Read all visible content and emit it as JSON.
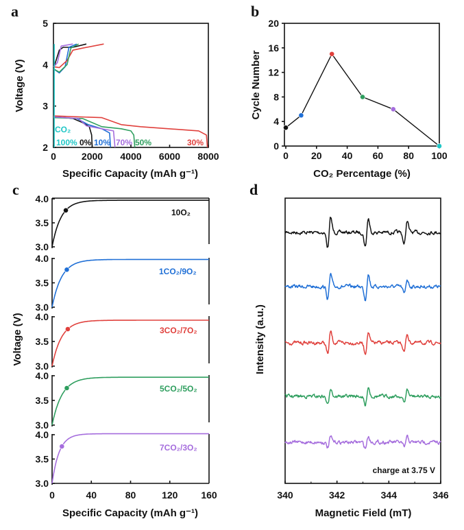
{
  "colors": {
    "p0": "#111111",
    "p10": "#1f6fd6",
    "p30": "#e0403c",
    "p50": "#2e9e5e",
    "p70": "#a56ddd",
    "p100": "#1fc6c6"
  },
  "chart_data": [
    {
      "panel": "a",
      "type": "line",
      "xlabel": "Specific Capacity (mAh g⁻¹)",
      "ylabel": "Voltage (V)",
      "xlim": [
        0,
        8000
      ],
      "ylim": [
        2,
        5
      ],
      "xticks": [
        "0",
        "2000",
        "4000",
        "6000",
        "8000"
      ],
      "yticks": [
        "2",
        "3",
        "4",
        "5"
      ],
      "annotation": "CO₂",
      "series": [
        {
          "name": "0%",
          "color": "p0",
          "discharge": [
            [
              0,
              2.75
            ],
            [
              1000,
              2.7
            ],
            [
              1500,
              2.6
            ],
            [
              1850,
              2.5
            ],
            [
              1970,
              2.3
            ],
            [
              2000,
              2.0
            ]
          ],
          "charge": [
            [
              0,
              3.95
            ],
            [
              100,
              4.05
            ],
            [
              300,
              4.35
            ],
            [
              500,
              4.42
            ],
            [
              1000,
              4.42
            ],
            [
              1700,
              4.5
            ]
          ]
        },
        {
          "name": "10%",
          "color": "p10",
          "discharge": [
            [
              0,
              2.73
            ],
            [
              1200,
              2.7
            ],
            [
              1800,
              2.55
            ],
            [
              2500,
              2.45
            ],
            [
              2900,
              2.35
            ],
            [
              2950,
              2.0
            ]
          ],
          "charge": [
            [
              0,
              3.9
            ],
            [
              300,
              3.8
            ],
            [
              600,
              3.95
            ],
            [
              800,
              4.42
            ],
            [
              1200,
              4.5
            ]
          ]
        },
        {
          "name": "30%",
          "color": "p30",
          "discharge": [
            [
              0,
              2.76
            ],
            [
              2500,
              2.72
            ],
            [
              3500,
              2.55
            ],
            [
              4500,
              2.5
            ],
            [
              7500,
              2.4
            ],
            [
              7900,
              2.3
            ],
            [
              7950,
              2.0
            ]
          ],
          "charge": [
            [
              0,
              3.95
            ],
            [
              300,
              3.93
            ],
            [
              700,
              4.1
            ],
            [
              1000,
              4.35
            ],
            [
              1500,
              4.4
            ],
            [
              2600,
              4.5
            ]
          ]
        },
        {
          "name": "50%",
          "color": "p50",
          "discharge": [
            [
              0,
              2.72
            ],
            [
              1500,
              2.7
            ],
            [
              2500,
              2.5
            ],
            [
              3500,
              2.45
            ],
            [
              4000,
              2.4
            ],
            [
              4150,
              2.3
            ],
            [
              4200,
              2.0
            ]
          ],
          "charge": [
            [
              0,
              3.9
            ],
            [
              300,
              3.82
            ],
            [
              700,
              4.0
            ],
            [
              900,
              4.4
            ],
            [
              1300,
              4.5
            ]
          ]
        },
        {
          "name": "70%",
          "color": "p70",
          "discharge": [
            [
              0,
              2.74
            ],
            [
              1300,
              2.7
            ],
            [
              1700,
              2.52
            ],
            [
              2500,
              2.45
            ],
            [
              3100,
              2.4
            ],
            [
              3180,
              2.0
            ]
          ],
          "charge": [
            [
              0,
              3.95
            ],
            [
              200,
              4.05
            ],
            [
              400,
              4.45
            ],
            [
              1000,
              4.5
            ]
          ]
        },
        {
          "name": "100%",
          "color": "p100",
          "discharge": [
            [
              40,
              4.5
            ],
            [
              40,
              2.0
            ]
          ],
          "charge": []
        }
      ]
    },
    {
      "panel": "b",
      "type": "line",
      "xlabel": "CO₂ Percentage (%)",
      "ylabel": "Cycle Number",
      "xlim": [
        0,
        100
      ],
      "ylim": [
        0,
        20
      ],
      "xticks": [
        "0",
        "20",
        "40",
        "60",
        "80",
        "100"
      ],
      "yticks": [
        "0",
        "4",
        "8",
        "12",
        "16",
        "20"
      ],
      "x": [
        0,
        10,
        30,
        50,
        70,
        100
      ],
      "values": [
        3,
        5,
        15,
        8,
        6,
        0
      ],
      "point_colors": [
        "p0",
        "p10",
        "p30",
        "p50",
        "p70",
        "p100"
      ]
    },
    {
      "panel": "c",
      "type": "line",
      "xlabel": "Specific Capacity (mAh g⁻¹)",
      "ylabel": "Voltage (V)",
      "xlim": [
        0,
        160
      ],
      "ylim": [
        3.0,
        4.0
      ],
      "xticks": [
        "0",
        "40",
        "80",
        "120",
        "160"
      ],
      "yticks": [
        "3.0",
        "3.5",
        "4.0"
      ],
      "series": [
        {
          "name": "10O₂",
          "color": "p0",
          "plateau": 3.97,
          "marker": [
            14,
            3.76
          ]
        },
        {
          "name": "1CO₂/9O₂",
          "color": "p10",
          "plateau": 3.98,
          "marker": [
            15,
            3.77
          ]
        },
        {
          "name": "3CO₂/7O₂",
          "color": "p30",
          "plateau": 3.93,
          "marker": [
            16,
            3.75
          ]
        },
        {
          "name": "5CO₂/5O₂",
          "color": "p50",
          "plateau": 3.97,
          "marker": [
            15,
            3.75
          ]
        },
        {
          "name": "7CO₂/3O₂",
          "color": "p70",
          "plateau": 4.02,
          "marker": [
            10,
            3.76
          ]
        }
      ]
    },
    {
      "panel": "d",
      "type": "line",
      "xlabel": "Magnetic Field (mT)",
      "ylabel": "Intensity (a.u.)",
      "xlim": [
        340,
        346
      ],
      "xticks": [
        "340",
        "342",
        "344",
        "346"
      ],
      "annotation": "charge at 3.75 V",
      "peaks_mT": [
        341.7,
        343.15,
        344.65
      ],
      "series": [
        {
          "color": "p0",
          "amplitude": [
            1.0,
            0.95,
            0.8
          ]
        },
        {
          "color": "p10",
          "amplitude": [
            0.8,
            0.85,
            0.5
          ]
        },
        {
          "color": "p30",
          "amplitude": [
            0.75,
            0.7,
            0.6
          ]
        },
        {
          "color": "p50",
          "amplitude": [
            0.6,
            0.65,
            0.45
          ]
        },
        {
          "color": "p70",
          "amplitude": [
            0.35,
            0.4,
            0.35
          ]
        }
      ]
    }
  ],
  "panels": [
    "a",
    "b",
    "c",
    "d"
  ]
}
